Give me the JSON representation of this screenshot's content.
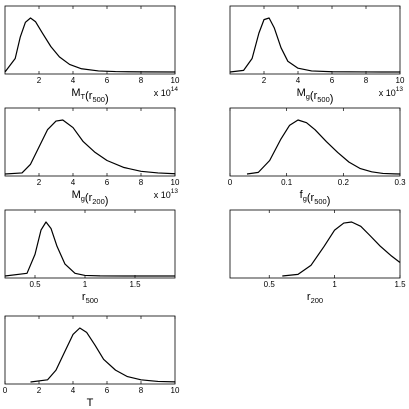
{
  "chart_data": [
    {
      "type": "line",
      "id": "MT",
      "xlim": [
        0,
        10
      ],
      "ylim": [
        0,
        1
      ],
      "xticks": [
        "2",
        "4",
        "6",
        "8",
        "10"
      ],
      "xtick_values": [
        2,
        4,
        6,
        8,
        10
      ],
      "multiplier": {
        "base": "x 10",
        "exp": "14"
      },
      "xlabel": {
        "main": "M",
        "sub": "T",
        "tail": "(r",
        "tailsub": "500",
        "close": ")"
      },
      "series": [
        {
          "x": [
            0,
            0.6,
            0.9,
            1.2,
            1.5,
            1.8,
            2.2,
            2.7,
            3.2,
            3.8,
            4.5,
            5.5,
            6.5,
            8,
            10
          ],
          "y": [
            0.0,
            0.25,
            0.65,
            0.92,
            1.0,
            0.93,
            0.72,
            0.47,
            0.28,
            0.14,
            0.06,
            0.02,
            0.008,
            0.002,
            0.0
          ]
        }
      ]
    },
    {
      "type": "line",
      "id": "Mg500",
      "xlim": [
        0,
        10
      ],
      "ylim": [
        0,
        1
      ],
      "xticks": [
        "2",
        "4",
        "6",
        "8",
        "10"
      ],
      "xtick_values": [
        2,
        4,
        6,
        8,
        10
      ],
      "multiplier": {
        "base": "x 10",
        "exp": "13"
      },
      "xlabel": {
        "main": "M",
        "sub": "g",
        "tail": "(r",
        "tailsub": "500",
        "close": ")"
      },
      "series": [
        {
          "x": [
            0,
            0.8,
            1.3,
            1.7,
            2.0,
            2.3,
            2.6,
            3.0,
            3.4,
            4.0,
            4.8,
            6,
            8,
            10
          ],
          "y": [
            0.0,
            0.03,
            0.25,
            0.72,
            0.97,
            1.0,
            0.82,
            0.45,
            0.2,
            0.07,
            0.02,
            0.005,
            0.001,
            0.0
          ]
        }
      ]
    },
    {
      "type": "line",
      "id": "Mg200",
      "xlim": [
        0,
        10
      ],
      "ylim": [
        0,
        1
      ],
      "xticks": [
        "2",
        "4",
        "6",
        "8",
        "10"
      ],
      "xtick_values": [
        2,
        4,
        6,
        8,
        10
      ],
      "multiplier": {
        "base": "x 10",
        "exp": "13"
      },
      "xlabel": {
        "main": "M",
        "sub": "g",
        "tail": "(r",
        "tailsub": "200",
        "close": ")"
      },
      "series": [
        {
          "x": [
            0,
            1.0,
            1.5,
            2.0,
            2.5,
            3.0,
            3.4,
            4.0,
            4.6,
            5.3,
            6.0,
            7.0,
            8.0,
            9.0,
            10
          ],
          "y": [
            0.0,
            0.02,
            0.18,
            0.5,
            0.82,
            0.98,
            1.0,
            0.86,
            0.6,
            0.4,
            0.25,
            0.12,
            0.05,
            0.02,
            0.005
          ]
        }
      ]
    },
    {
      "type": "line",
      "id": "fg500",
      "xlim": [
        0,
        0.3
      ],
      "ylim": [
        0,
        1
      ],
      "xticks": [
        "0",
        "0.1",
        "0.2",
        "0.3"
      ],
      "xtick_values": [
        0,
        0.1,
        0.2,
        0.3
      ],
      "multiplier": null,
      "xlabel": {
        "main": "f",
        "sub": "g",
        "tail": "(r",
        "tailsub": "500",
        "close": ")"
      },
      "series": [
        {
          "x": [
            0.03,
            0.05,
            0.07,
            0.09,
            0.105,
            0.12,
            0.135,
            0.15,
            0.17,
            0.19,
            0.21,
            0.23,
            0.25,
            0.27,
            0.29,
            0.3
          ],
          "y": [
            0.0,
            0.03,
            0.25,
            0.65,
            0.9,
            1.0,
            0.95,
            0.82,
            0.6,
            0.4,
            0.22,
            0.1,
            0.04,
            0.01,
            0.003,
            0.0
          ]
        }
      ]
    },
    {
      "type": "line",
      "id": "r500",
      "xlim": [
        0.2,
        1.9
      ],
      "ylim": [
        0,
        1
      ],
      "xticks": [
        "0.5",
        "1",
        "1.5"
      ],
      "xtick_values": [
        0.5,
        1.0,
        1.5
      ],
      "multiplier": null,
      "xlabel": {
        "main": "r",
        "sub": "500",
        "tail": "",
        "tailsub": "",
        "close": ""
      },
      "series": [
        {
          "x": [
            0.2,
            0.42,
            0.5,
            0.56,
            0.61,
            0.66,
            0.72,
            0.8,
            0.9,
            1.0,
            1.15,
            1.4,
            1.9
          ],
          "y": [
            0.0,
            0.05,
            0.4,
            0.85,
            1.0,
            0.88,
            0.55,
            0.22,
            0.05,
            0.01,
            0.002,
            0.0,
            0.0
          ]
        }
      ]
    },
    {
      "type": "line",
      "id": "r200",
      "xlim": [
        0.2,
        1.5
      ],
      "ylim": [
        0,
        1
      ],
      "xticks": [
        "0.5",
        "1",
        "1.5"
      ],
      "xtick_values": [
        0.5,
        1.0,
        1.5
      ],
      "multiplier": null,
      "xlabel": {
        "main": "r",
        "sub": "200",
        "tail": "",
        "tailsub": "",
        "close": ""
      },
      "series": [
        {
          "x": [
            0.6,
            0.72,
            0.82,
            0.92,
            1.0,
            1.07,
            1.13,
            1.2,
            1.27,
            1.35,
            1.43,
            1.5
          ],
          "y": [
            0.0,
            0.03,
            0.2,
            0.55,
            0.85,
            0.98,
            1.0,
            0.92,
            0.75,
            0.55,
            0.38,
            0.25
          ]
        }
      ]
    },
    {
      "type": "line",
      "id": "T",
      "xlim": [
        0,
        10
      ],
      "ylim": [
        0,
        1
      ],
      "xticks": [
        "0",
        "2",
        "4",
        "6",
        "8",
        "10"
      ],
      "xtick_values": [
        0,
        2,
        4,
        6,
        8,
        10
      ],
      "multiplier": null,
      "xlabel": {
        "main": "T",
        "sub": "",
        "tail": "",
        "tailsub": "",
        "close": ""
      },
      "series": [
        {
          "x": [
            1.5,
            2.5,
            3.0,
            3.5,
            4.0,
            4.4,
            4.8,
            5.3,
            5.8,
            6.5,
            7.2,
            8.0,
            9.0,
            10
          ],
          "y": [
            0.0,
            0.04,
            0.22,
            0.55,
            0.88,
            1.0,
            0.92,
            0.68,
            0.42,
            0.22,
            0.1,
            0.04,
            0.01,
            0.003
          ]
        }
      ]
    }
  ]
}
